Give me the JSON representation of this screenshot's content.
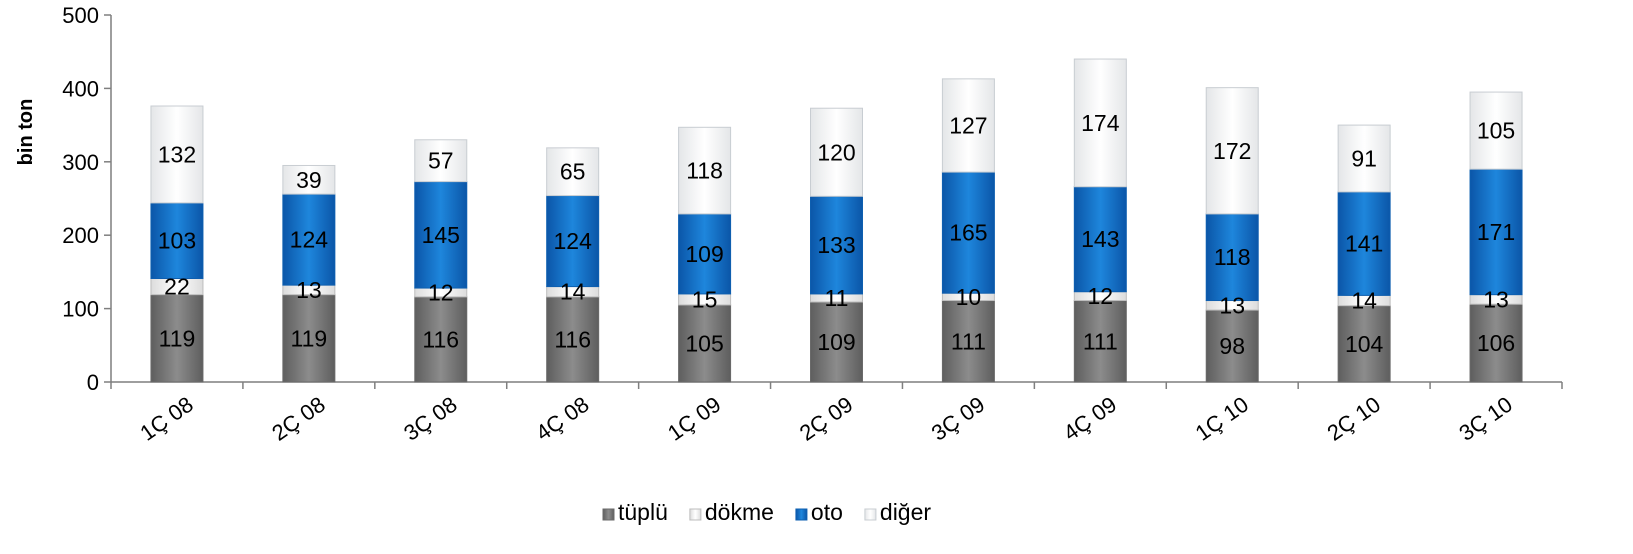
{
  "chart_data": {
    "type": "bar",
    "stacked": true,
    "title": "",
    "xlabel": "",
    "ylabel": "bin ton",
    "ylim": [
      0,
      500
    ],
    "yticks": [
      0,
      100,
      200,
      300,
      400,
      500
    ],
    "grid": false,
    "legend_position": "bottom",
    "categories": [
      "1Ç 08",
      "2Ç 08",
      "3Ç 08",
      "4Ç 08",
      "1Ç 09",
      "2Ç 09",
      "3Ç 09",
      "4Ç 09",
      "1Ç 10",
      "2Ç 10",
      "3Ç 10"
    ],
    "series": [
      {
        "name": "tüplü",
        "color": "#7f7f7f",
        "values": [
          119,
          119,
          116,
          116,
          105,
          109,
          111,
          111,
          98,
          104,
          106
        ]
      },
      {
        "name": "dökme",
        "color": "#f2f2f2",
        "values": [
          22,
          13,
          12,
          14,
          15,
          11,
          10,
          12,
          13,
          14,
          13
        ]
      },
      {
        "name": "oto",
        "color": "#1f78d1",
        "values": [
          103,
          124,
          145,
          124,
          109,
          133,
          165,
          143,
          118,
          141,
          171
        ]
      },
      {
        "name": "diğer",
        "color": "#f7fbfd",
        "values": [
          132,
          39,
          57,
          65,
          118,
          120,
          127,
          174,
          172,
          91,
          105
        ]
      }
    ]
  }
}
